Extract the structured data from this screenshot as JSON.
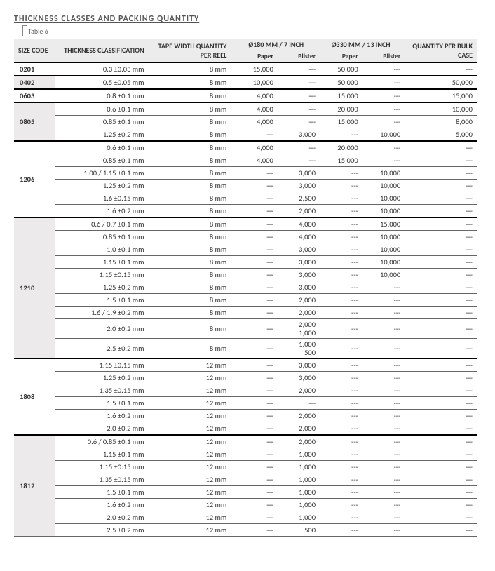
{
  "title": "THICKNESS CLASSES AND PACKING QUANTITY",
  "table_label": "Table 6",
  "headers": {
    "size": "SIZE CODE",
    "thickness": "THICKNESS CLASSIFICATION",
    "tape": "TAPE WIDTH QUANTITY PER REEL",
    "d180": "Ø180 MM / 7 INCH",
    "d330": "Ø330 MM / 13 INCH",
    "bulk": "QUANTITY PER BULK CASE",
    "paper": "Paper",
    "blister": "Blister"
  },
  "groups": [
    {
      "size": "0201",
      "shade": false,
      "rows": [
        {
          "thick": "0.3 ±0.03 mm",
          "tape": "8 mm",
          "p180": "15,000",
          "b180": "---",
          "p330": "50,000",
          "b330": "---",
          "bulk": "---"
        }
      ]
    },
    {
      "size": "0402",
      "shade": true,
      "rows": [
        {
          "thick": "0.5 ±0.05 mm",
          "tape": "8 mm",
          "p180": "10,000",
          "b180": "---",
          "p330": "50,000",
          "b330": "---",
          "bulk": "50,000"
        }
      ]
    },
    {
      "size": "0603",
      "shade": false,
      "rows": [
        {
          "thick": "0.8 ±0.1 mm",
          "tape": "8 mm",
          "p180": "4,000",
          "b180": "---",
          "p330": "15,000",
          "b330": "---",
          "bulk": "15,000"
        }
      ]
    },
    {
      "size": "0805",
      "shade": true,
      "rows": [
        {
          "thick": "0.6 ±0.1 mm",
          "tape": "8 mm",
          "p180": "4,000",
          "b180": "---",
          "p330": "20,000",
          "b330": "---",
          "bulk": "10,000"
        },
        {
          "thick": "0.85 ±0.1 mm",
          "tape": "8 mm",
          "p180": "4,000",
          "b180": "---",
          "p330": "15,000",
          "b330": "---",
          "bulk": "8,000"
        },
        {
          "thick": "1.25 ±0.2 mm",
          "tape": "8 mm",
          "p180": "---",
          "b180": "3,000",
          "p330": "---",
          "b330": "10,000",
          "bulk": "5,000"
        }
      ]
    },
    {
      "size": "1206",
      "shade": false,
      "rows": [
        {
          "thick": "0.6 ±0.1 mm",
          "tape": "8 mm",
          "p180": "4,000",
          "b180": "---",
          "p330": "20,000",
          "b330": "---",
          "bulk": "---"
        },
        {
          "thick": "0.85 ±0.1 mm",
          "tape": "8 mm",
          "p180": "4,000",
          "b180": "---",
          "p330": "15,000",
          "b330": "---",
          "bulk": "---"
        },
        {
          "thick": "1.00 / 1.15 ±0.1 mm",
          "tape": "8 mm",
          "p180": "---",
          "b180": "3,000",
          "p330": "---",
          "b330": "10,000",
          "bulk": "---"
        },
        {
          "thick": "1.25 ±0.2 mm",
          "tape": "8 mm",
          "p180": "---",
          "b180": "3,000",
          "p330": "---",
          "b330": "10,000",
          "bulk": "---"
        },
        {
          "thick": "1.6 ±0.15 mm",
          "tape": "8 mm",
          "p180": "---",
          "b180": "2,500",
          "p330": "---",
          "b330": "10,000",
          "bulk": "---"
        },
        {
          "thick": "1.6 ±0.2 mm",
          "tape": "8 mm",
          "p180": "---",
          "b180": "2,000",
          "p330": "---",
          "b330": "10,000",
          "bulk": "---"
        }
      ]
    },
    {
      "size": "1210",
      "shade": true,
      "rows": [
        {
          "thick": "0.6 / 0.7 ±0.1 mm",
          "tape": "8 mm",
          "p180": "---",
          "b180": "4,000",
          "p330": "---",
          "b330": "15,000",
          "bulk": "---"
        },
        {
          "thick": "0.85 ±0.1 mm",
          "tape": "8 mm",
          "p180": "---",
          "b180": "4,000",
          "p330": "---",
          "b330": "10,000",
          "bulk": "---"
        },
        {
          "thick": "1.0 ±0.1 mm",
          "tape": "8 mm",
          "p180": "---",
          "b180": "3,000",
          "p330": "---",
          "b330": "10,000",
          "bulk": "---"
        },
        {
          "thick": "1.15 ±0.1 mm",
          "tape": "8 mm",
          "p180": "---",
          "b180": "3,000",
          "p330": "---",
          "b330": "10,000",
          "bulk": "---"
        },
        {
          "thick": "1.15 ±0.15 mm",
          "tape": "8 mm",
          "p180": "---",
          "b180": "3,000",
          "p330": "---",
          "b330": "10,000",
          "bulk": "---"
        },
        {
          "thick": "1.25 ±0.2 mm",
          "tape": "8 mm",
          "p180": "---",
          "b180": "3,000",
          "p330": "---",
          "b330": "---",
          "bulk": "---"
        },
        {
          "thick": "1.5 ±0.1 mm",
          "tape": "8 mm",
          "p180": "---",
          "b180": "2,000",
          "p330": "---",
          "b330": "---",
          "bulk": "---"
        },
        {
          "thick": "1.6 / 1.9 ±0.2 mm",
          "tape": "8 mm",
          "p180": "---",
          "b180": "2,000",
          "p330": "---",
          "b330": "---",
          "bulk": "---"
        },
        {
          "thick": "2.0 ±0.2 mm",
          "tape": "8 mm",
          "p180": "---",
          "b180": "2,000\n1,000",
          "p330": "---",
          "b330": "---",
          "bulk": "---"
        },
        {
          "thick": "2.5 ±0.2 mm",
          "tape": "8 mm",
          "p180": "---",
          "b180": "1,000\n500",
          "p330": "---",
          "b330": "---",
          "bulk": "---"
        }
      ]
    },
    {
      "size": "1808",
      "shade": false,
      "rows": [
        {
          "thick": "1.15 ±0.15 mm",
          "tape": "12 mm",
          "p180": "---",
          "b180": "3,000",
          "p330": "---",
          "b330": "---",
          "bulk": "---"
        },
        {
          "thick": "1.25 ±0.2 mm",
          "tape": "12 mm",
          "p180": "---",
          "b180": "3,000",
          "p330": "---",
          "b330": "---",
          "bulk": "---"
        },
        {
          "thick": "1.35 ±0.15 mm",
          "tape": "12 mm",
          "p180": "---",
          "b180": "2,000",
          "p330": "---",
          "b330": "---",
          "bulk": "---"
        },
        {
          "thick": "1.5 ±0.1 mm",
          "tape": "12 mm",
          "p180": "---",
          "b180": "---",
          "p330": "---",
          "b330": "---",
          "bulk": "---"
        },
        {
          "thick": "1.6 ±0.2 mm",
          "tape": "12 mm",
          "p180": "---",
          "b180": "2,000",
          "p330": "---",
          "b330": "---",
          "bulk": "---"
        },
        {
          "thick": "2.0 ±0.2 mm",
          "tape": "12 mm",
          "p180": "---",
          "b180": "2,000",
          "p330": "---",
          "b330": "---",
          "bulk": "---"
        }
      ]
    },
    {
      "size": "1812",
      "shade": true,
      "rows": [
        {
          "thick": "0.6 / 0.85 ±0.1 mm",
          "tape": "12 mm",
          "p180": "---",
          "b180": "2,000",
          "p330": "---",
          "b330": "---",
          "bulk": "---"
        },
        {
          "thick": "1.15 ±0.1 mm",
          "tape": "12 mm",
          "p180": "---",
          "b180": "1,000",
          "p330": "---",
          "b330": "---",
          "bulk": "---"
        },
        {
          "thick": "1.15 ±0.15 mm",
          "tape": "12 mm",
          "p180": "---",
          "b180": "1,000",
          "p330": "---",
          "b330": "---",
          "bulk": "---"
        },
        {
          "thick": "1.35 ±0.15 mm",
          "tape": "12 mm",
          "p180": "---",
          "b180": "1,000",
          "p330": "---",
          "b330": "---",
          "bulk": "---"
        },
        {
          "thick": "1.5 ±0.1 mm",
          "tape": "12 mm",
          "p180": "---",
          "b180": "1,000",
          "p330": "---",
          "b330": "---",
          "bulk": "---"
        },
        {
          "thick": "1.6 ±0.2 mm",
          "tape": "12 mm",
          "p180": "---",
          "b180": "1,000",
          "p330": "---",
          "b330": "---",
          "bulk": "---"
        },
        {
          "thick": "2.0 ±0.2 mm",
          "tape": "12 mm",
          "p180": "---",
          "b180": "1,000",
          "p330": "---",
          "b330": "---",
          "bulk": "---"
        },
        {
          "thick": "2.5 ±0.2 mm",
          "tape": "12 mm",
          "p180": "---",
          "b180": "500",
          "p330": "---",
          "b330": "---",
          "bulk": "---"
        }
      ]
    }
  ]
}
